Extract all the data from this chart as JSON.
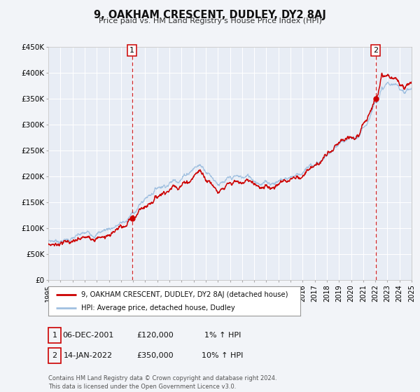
{
  "title": "9, OAKHAM CRESCENT, DUDLEY, DY2 8AJ",
  "subtitle": "Price paid vs. HM Land Registry's House Price Index (HPI)",
  "background_color": "#f2f4f8",
  "plot_bg_color": "#e8edf5",
  "xmin": 1995,
  "xmax": 2025,
  "ymin": 0,
  "ymax": 450000,
  "yticks": [
    0,
    50000,
    100000,
    150000,
    200000,
    250000,
    300000,
    350000,
    400000,
    450000
  ],
  "ytick_labels": [
    "£0",
    "£50K",
    "£100K",
    "£150K",
    "£200K",
    "£250K",
    "£300K",
    "£350K",
    "£400K",
    "£450K"
  ],
  "xticks": [
    1995,
    1996,
    1997,
    1998,
    1999,
    2000,
    2001,
    2002,
    2003,
    2004,
    2005,
    2006,
    2007,
    2008,
    2009,
    2010,
    2011,
    2012,
    2013,
    2014,
    2015,
    2016,
    2017,
    2018,
    2019,
    2020,
    2021,
    2022,
    2023,
    2024,
    2025
  ],
  "sale1_x": 2001.92,
  "sale1_y": 120000,
  "sale1_label": "1",
  "sale2_x": 2022.04,
  "sale2_y": 350000,
  "sale2_label": "2",
  "marker_color": "#cc0000",
  "vline_color": "#cc0000",
  "line_color_red": "#cc0000",
  "line_color_blue": "#a0c0e0",
  "legend_label_red": "9, OAKHAM CRESCENT, DUDLEY, DY2 8AJ (detached house)",
  "legend_label_blue": "HPI: Average price, detached house, Dudley",
  "annotation1_box_label": "1",
  "annotation1_date": "06-DEC-2001",
  "annotation1_price": "£120,000",
  "annotation1_hpi": "1% ↑ HPI",
  "annotation2_box_label": "2",
  "annotation2_date": "14-JAN-2022",
  "annotation2_price": "£350,000",
  "annotation2_hpi": "10% ↑ HPI",
  "footer": "Contains HM Land Registry data © Crown copyright and database right 2024.\nThis data is licensed under the Open Government Licence v3.0."
}
